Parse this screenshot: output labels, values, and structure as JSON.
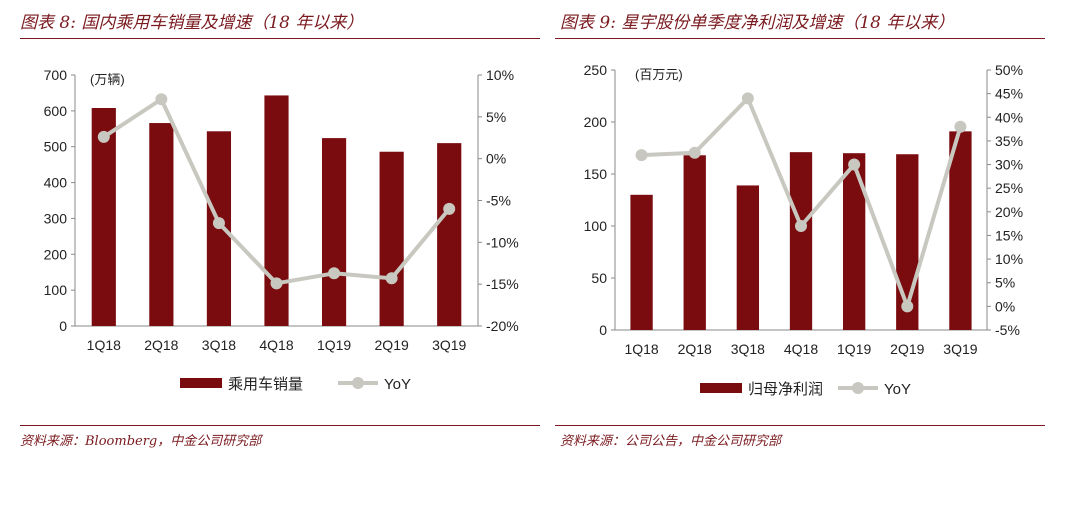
{
  "colors": {
    "bar": "#7a0b0f",
    "line": "#c8c8c0",
    "accent": "#7a1a1f"
  },
  "left": {
    "title": "图表 8:  国内乘用车销量及增速（18 年以来）",
    "source": "资料来源：Bloomberg，中金公司研究部",
    "chart_data": {
      "type": "bar",
      "categories": [
        "1Q18",
        "2Q18",
        "3Q18",
        "4Q18",
        "1Q19",
        "2Q19",
        "3Q19"
      ],
      "series": [
        {
          "name": "乘用车销量",
          "type": "bar",
          "axis": "left",
          "values": [
            608,
            566,
            543,
            643,
            524,
            486,
            510
          ]
        },
        {
          "name": "YoY",
          "type": "line",
          "axis": "right",
          "values": [
            2.6,
            7.1,
            -7.7,
            -14.9,
            -13.7,
            -14.3,
            -6.0
          ]
        }
      ],
      "unit_label": "(万辆)",
      "ylim": [
        0,
        700
      ],
      "yticks": [
        0,
        100,
        200,
        300,
        400,
        500,
        600,
        700
      ],
      "y2lim": [
        -20,
        10
      ],
      "y2ticks": [
        -20,
        -15,
        -10,
        -5,
        0,
        5,
        10
      ],
      "y2tick_labels": [
        "-20%",
        "-15%",
        "-10%",
        "-5%",
        "0%",
        "5%",
        "10%"
      ],
      "legend": "bottom",
      "grid": false
    }
  },
  "right": {
    "title": "图表 9:  星宇股份单季度净利润及增速（18 年以来）",
    "source": "资料来源：公司公告，中金公司研究部",
    "chart_data": {
      "type": "bar",
      "categories": [
        "1Q18",
        "2Q18",
        "3Q18",
        "4Q18",
        "1Q19",
        "2Q19",
        "3Q19"
      ],
      "series": [
        {
          "name": "归母净利润",
          "type": "bar",
          "axis": "left",
          "values": [
            130,
            168,
            139,
            171,
            170,
            169,
            191
          ]
        },
        {
          "name": "YoY",
          "type": "line",
          "axis": "right",
          "values": [
            32.0,
            32.5,
            44.0,
            17.0,
            30.0,
            0.0,
            38.0
          ]
        }
      ],
      "unit_label": "(百万元)",
      "ylim": [
        0,
        250
      ],
      "yticks": [
        0,
        50,
        100,
        150,
        200,
        250
      ],
      "y2lim": [
        -5,
        50
      ],
      "y2ticks": [
        -5,
        0,
        5,
        10,
        15,
        20,
        25,
        30,
        35,
        40,
        45,
        50
      ],
      "y2tick_labels": [
        "-5%",
        "0%",
        "5%",
        "10%",
        "15%",
        "20%",
        "25%",
        "30%",
        "35%",
        "40%",
        "45%",
        "50%"
      ],
      "legend": "bottom",
      "grid": false
    }
  }
}
